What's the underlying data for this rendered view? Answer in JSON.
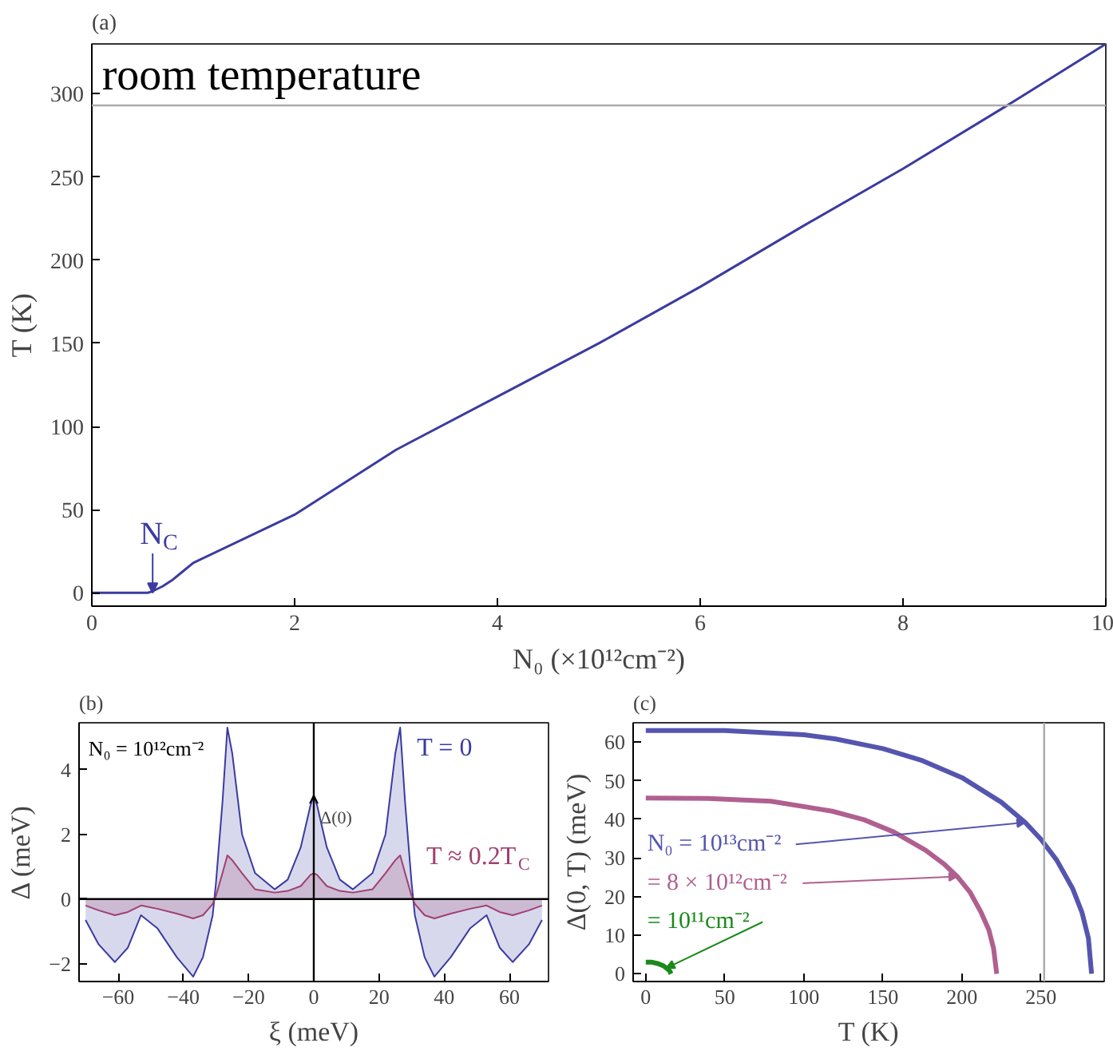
{
  "chart_data": [
    {
      "type": "line",
      "title": "(a)",
      "xlabel": "N₀ (×10¹²cm⁻²)",
      "ylabel": "T (K)",
      "xlim": [
        0,
        10
      ],
      "ylim": [
        -8,
        330
      ],
      "xticks": [
        0,
        2,
        4,
        6,
        8,
        10
      ],
      "yticks": [
        0,
        50,
        100,
        150,
        200,
        250,
        300
      ],
      "x": [
        0,
        0.3,
        0.55,
        0.6,
        0.7,
        0.8,
        0.9,
        1.0,
        2,
        3,
        4,
        5,
        6,
        7,
        8,
        9,
        10
      ],
      "series": [
        {
          "color": "#3b3ba0",
          "values": [
            0,
            0,
            0,
            1,
            4,
            8,
            13,
            18,
            47,
            86,
            118,
            150,
            184,
            220,
            255,
            292,
            330
          ]
        }
      ],
      "ref_lines": [
        {
          "axis": "y",
          "value": 293,
          "label": "room temperature",
          "color": "#aaaaaa"
        }
      ],
      "annotations": [
        {
          "text": "N$_{C}$",
          "x": 0.6,
          "y": 0
        }
      ]
    },
    {
      "type": "area",
      "title": "(b)",
      "xlabel": "ξ (meV)",
      "ylabel": "Δ (meV)",
      "xlim": [
        -72,
        72
      ],
      "ylim": [
        -2.55,
        5.45
      ],
      "xticks": [
        -60,
        -40,
        -20,
        0,
        20,
        40,
        60
      ],
      "yticks": [
        -2,
        0,
        2,
        4
      ],
      "x": [
        -70,
        -66,
        -61,
        -57,
        -53,
        -48,
        -42,
        -37,
        -34,
        -31,
        -30,
        -28,
        -26.5,
        -25,
        -22,
        -18,
        -12,
        -8,
        -4,
        -1,
        0,
        1,
        4,
        8,
        12,
        18,
        22,
        25,
        26.5,
        28,
        30,
        31,
        34,
        37,
        42,
        48,
        53,
        57,
        61,
        66,
        70
      ],
      "series": [
        {
          "name": "T = 0",
          "color": "#3b3ba0",
          "values": [
            -0.65,
            -1.4,
            -1.95,
            -1.5,
            -0.5,
            -0.9,
            -1.8,
            -2.4,
            -1.8,
            -0.5,
            0.5,
            3.0,
            5.3,
            4.5,
            2.0,
            0.8,
            0.3,
            0.6,
            1.6,
            2.9,
            3.2,
            2.9,
            1.6,
            0.6,
            0.3,
            0.8,
            2.0,
            4.5,
            5.3,
            3.0,
            0.5,
            -0.5,
            -1.8,
            -2.4,
            -1.8,
            -0.9,
            -0.5,
            -1.5,
            -1.95,
            -1.4,
            -0.65
          ]
        },
        {
          "name": "T ≈ 0.2T$_{C}$",
          "color": "#a04070",
          "values": [
            -0.2,
            -0.35,
            -0.5,
            -0.4,
            -0.2,
            -0.3,
            -0.45,
            -0.6,
            -0.5,
            -0.15,
            0.1,
            0.8,
            1.35,
            1.2,
            0.8,
            0.3,
            0.2,
            0.25,
            0.4,
            0.75,
            0.8,
            0.75,
            0.4,
            0.25,
            0.2,
            0.3,
            0.8,
            1.2,
            1.35,
            0.8,
            0.1,
            -0.15,
            -0.5,
            -0.6,
            -0.45,
            -0.3,
            -0.2,
            -0.4,
            -0.5,
            -0.35,
            -0.2
          ]
        }
      ],
      "ref_lines": [
        {
          "axis": "x",
          "value": 0,
          "color": "#000000"
        },
        {
          "axis": "y",
          "value": 0,
          "color": "#000000"
        }
      ],
      "annotations": [
        "N₀ = 10¹²cm⁻²",
        {
          "text": "Δ(0)",
          "x": 0,
          "y": 3.2
        }
      ]
    },
    {
      "type": "line",
      "title": "(c)",
      "xlabel": "T (K)",
      "ylabel": "Δ(0, T) (meV)",
      "xlim": [
        -8,
        290
      ],
      "ylim": [
        -2,
        65
      ],
      "xticks": [
        0,
        50,
        100,
        150,
        200,
        250
      ],
      "yticks": [
        0,
        10,
        20,
        30,
        40,
        50,
        60
      ],
      "series": [
        {
          "name": "N₀ = 10¹³cm⁻²",
          "color": "#5555b0",
          "x": [
            0,
            50,
            100,
            120,
            150,
            175,
            200,
            225,
            240,
            250,
            260,
            270,
            276,
            280,
            282
          ],
          "values": [
            63,
            63,
            61.9,
            60.8,
            58.3,
            55.2,
            50.8,
            44.4,
            39.2,
            34.8,
            29.4,
            22.1,
            15.8,
            9.2,
            0
          ]
        },
        {
          "name": "= 8 × 10¹²cm⁻²",
          "color": "#b06090",
          "x": [
            0,
            39,
            79,
            118,
            138,
            157,
            177,
            189,
            197,
            205,
            212,
            217,
            220,
            222
          ],
          "values": [
            45.5,
            45.4,
            44.7,
            42.1,
            39.9,
            36.7,
            32.0,
            28.3,
            25.2,
            21.2,
            16.0,
            11.4,
            6.6,
            0
          ]
        },
        {
          "name": "= 10¹¹cm⁻²",
          "color": "#1a8a1a",
          "x": [
            0,
            4,
            8,
            11,
            13,
            15,
            16
          ],
          "values": [
            3,
            3,
            2.6,
            2.1,
            1.5,
            0.8,
            0
          ]
        }
      ],
      "ref_lines": [
        {
          "axis": "x",
          "value": 252,
          "color": "#aaaaaa"
        }
      ]
    }
  ]
}
